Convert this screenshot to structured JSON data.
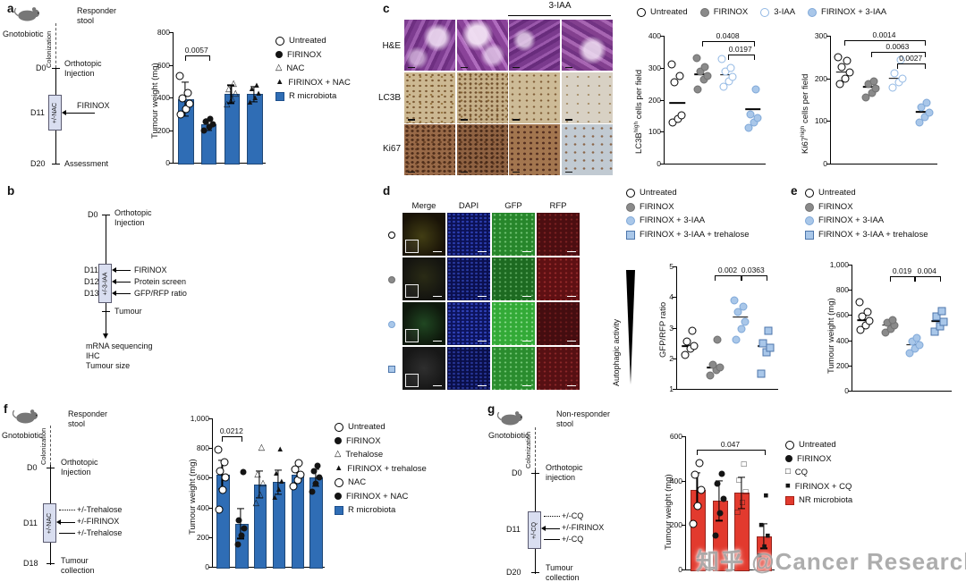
{
  "watermark": "知乎 @Cancer Research",
  "panel_a": {
    "label": "a",
    "schematic": {
      "gnotobiotic": "Gnotobiotic",
      "stool": "Responder stool",
      "colonization": "Colonization",
      "d0": "D0",
      "d0_label": "Orthotopic Injection",
      "d11": "D11",
      "box": "+/-NAC",
      "arrow_label": "FIRINOX",
      "d20": "D20",
      "d20_label": "Assessment"
    },
    "ylabel": "Tumour weight (mg)",
    "chart": {
      "type": "bar",
      "bar_color": "#2f6db5",
      "ylim": [
        0,
        800
      ],
      "yticks": [
        {
          "v": 0,
          "label": "0"
        },
        {
          "v": 200,
          "label": "200"
        },
        {
          "v": 400,
          "label": "400"
        },
        {
          "v": 600,
          "label": "600"
        },
        {
          "v": 800,
          "label": "800"
        }
      ],
      "groups": [
        {
          "name": "Untreated",
          "marker": "open-circle",
          "value": 390,
          "err": 105,
          "points": [
            295,
            330,
            360,
            395,
            425,
            530
          ]
        },
        {
          "name": "FIRINOX",
          "marker": "filled-circle",
          "value": 235,
          "err": 35,
          "points": [
            200,
            218,
            235,
            252,
            268
          ]
        },
        {
          "name": "NAC",
          "marker": "open-triangle",
          "value": 420,
          "err": 55,
          "points": [
            355,
            390,
            420,
            450,
            480
          ]
        },
        {
          "name": "FIRINOX + NAC",
          "marker": "filled-triangle",
          "value": 420,
          "err": 45,
          "points": [
            365,
            395,
            420,
            448,
            470
          ]
        }
      ],
      "sig": [
        {
          "text": "0.0057",
          "i": 0,
          "j": 1,
          "y": 660
        }
      ]
    },
    "legend": [
      {
        "marker": "open-circle",
        "label": "Untreated"
      },
      {
        "marker": "filled-circle",
        "label": "FIRINOX"
      },
      {
        "marker": "open-triangle",
        "label": "NAC"
      },
      {
        "marker": "filled-triangle",
        "label": "FIRINOX + NAC"
      },
      {
        "marker": "blue-square",
        "label": "R microbiota"
      }
    ]
  },
  "panel_b": {
    "label": "b",
    "d0": "D0",
    "d0_label": "Orthotopic Injection",
    "box": "+/-3-IAA",
    "d11": "D11",
    "d11_label": "FIRINOX",
    "d12": "D12",
    "d12_label": "Protein screen",
    "d13": "D13",
    "d13_label": "GFP/RFP ratio",
    "tumour": "Tumour",
    "outputs": [
      "mRNA sequencing",
      "IHC",
      "Tumour size"
    ]
  },
  "panel_c": {
    "label": "c",
    "treatment_label": "3-IAA",
    "rows": [
      "H&E",
      "LC3B",
      "Ki67"
    ],
    "legend": [
      {
        "marker": "open-circle",
        "label": "Untreated"
      },
      {
        "marker": "gray-circle",
        "label": "FIRINOX"
      },
      {
        "marker": "lblue-open-circle",
        "label": "3-IAA"
      },
      {
        "marker": "lblue-circle",
        "label": "FIRINOX + 3-IAA"
      }
    ],
    "lc3b_plot": {
      "ylabel_base": "LC3B",
      "ylabel_sup": "high",
      "ylabel_rest": " cells per field",
      "type": "dots",
      "ylim": [
        0,
        400
      ],
      "yticks": [
        {
          "v": 0,
          "label": "0"
        },
        {
          "v": 100,
          "label": "100"
        },
        {
          "v": 200,
          "label": "200"
        },
        {
          "v": 300,
          "label": "300"
        },
        {
          "v": 400,
          "label": "400"
        }
      ],
      "groups": [
        {
          "name": "Untreated",
          "marker": "open-circle",
          "median": 190,
          "points": [
            128,
            140,
            152,
            255,
            275,
            310
          ]
        },
        {
          "name": "FIRINOX",
          "marker": "gray-circle",
          "median": 280,
          "points": [
            232,
            262,
            275,
            288,
            302,
            330
          ]
        },
        {
          "name": "3-IAA",
          "marker": "lblue-open-circle",
          "median": 278,
          "points": [
            240,
            258,
            272,
            288,
            300,
            328
          ]
        },
        {
          "name": "FIRINOX + 3-IAA",
          "marker": "lblue-circle",
          "median": 170,
          "points": [
            112,
            128,
            142,
            155,
            232
          ]
        }
      ],
      "sig": [
        {
          "text": "0.0408",
          "i": 1,
          "j": 3,
          "y": 382
        },
        {
          "text": "0.0197",
          "i": 2,
          "j": 3,
          "y": 342
        }
      ]
    },
    "ki67_plot": {
      "ylabel_base": "Ki67",
      "ylabel_sup": "high",
      "ylabel_rest": " cells per field",
      "type": "dots",
      "ylim": [
        0,
        300
      ],
      "yticks": [
        {
          "v": 0,
          "label": "0"
        },
        {
          "v": 100,
          "label": "100"
        },
        {
          "v": 200,
          "label": "200"
        },
        {
          "v": 300,
          "label": "300"
        }
      ],
      "groups": [
        {
          "name": "Untreated",
          "marker": "open-circle",
          "median": 215,
          "points": [
            186,
            200,
            214,
            226,
            242,
            250
          ]
        },
        {
          "name": "FIRINOX",
          "marker": "gray-circle",
          "median": 180,
          "points": [
            156,
            166,
            176,
            186,
            192
          ]
        },
        {
          "name": "3-IAA",
          "marker": "lblue-open-circle",
          "median": 200,
          "points": [
            178,
            190,
            200,
            212,
            244
          ]
        },
        {
          "name": "FIRINOX + 3-IAA",
          "marker": "lblue-circle",
          "median": 122,
          "points": [
            96,
            110,
            120,
            132,
            142
          ]
        }
      ],
      "sig": [
        {
          "text": "0.0014",
          "i": 0,
          "j": 3,
          "y": 290
        },
        {
          "text": "0.0063",
          "i": 1,
          "j": 3,
          "y": 262
        },
        {
          "text": "0.0027",
          "i": 2,
          "j": 3,
          "y": 234
        }
      ]
    }
  },
  "panel_d": {
    "label": "d",
    "col_headers": [
      "Merge",
      "DAPI",
      "GFP",
      "RFP"
    ],
    "row_markers": [
      "open-circle",
      "gray-circle",
      "lblue-circle",
      "lblue-square"
    ],
    "legend": [
      {
        "marker": "open-circle",
        "label": "Untreated"
      },
      {
        "marker": "gray-circle",
        "label": "FIRINOX"
      },
      {
        "marker": "lblue-circle",
        "label": "FIRINOX + 3-IAA"
      },
      {
        "marker": "lblue-square",
        "label": "FIRINOX + 3-IAA + trehalose"
      }
    ],
    "activity_label": "Autophagic activity",
    "ylabel": "GFP/RFP ratio",
    "plot": {
      "type": "dots",
      "ylim": [
        1,
        5
      ],
      "yticks": [
        {
          "v": 1,
          "label": "1"
        },
        {
          "v": 2,
          "label": "2"
        },
        {
          "v": 3,
          "label": "3"
        },
        {
          "v": 4,
          "label": "4"
        },
        {
          "v": 5,
          "label": "5"
        }
      ],
      "groups": [
        {
          "name": "Untreated",
          "marker": "open-circle",
          "median": 2.4,
          "points": [
            2.1,
            2.3,
            2.4,
            2.55,
            2.9
          ]
        },
        {
          "name": "FIRINOX",
          "marker": "gray-circle",
          "median": 1.7,
          "points": [
            1.45,
            1.6,
            1.7,
            1.8,
            2.6
          ]
        },
        {
          "name": "FIRINOX + 3-IAA",
          "marker": "lblue-circle",
          "median": 3.35,
          "points": [
            2.6,
            2.95,
            3.2,
            3.5,
            3.7,
            3.9
          ]
        },
        {
          "name": "FIRINOX + 3-IAA + trehalose",
          "marker": "lblue-square",
          "median": 2.4,
          "points": [
            1.5,
            2.2,
            2.35,
            2.5,
            2.9
          ]
        }
      ],
      "sig": [
        {
          "text": "0.002",
          "i": 1,
          "j": 2,
          "y": 4.72
        },
        {
          "text": "0.0363",
          "i": 2,
          "j": 3,
          "y": 4.72
        }
      ]
    }
  },
  "panel_e": {
    "label": "e",
    "legend": [
      {
        "marker": "open-circle",
        "label": "Untreated"
      },
      {
        "marker": "gray-circle",
        "label": "FIRINOX"
      },
      {
        "marker": "lblue-circle",
        "label": "FIRINOX + 3-IAA"
      },
      {
        "marker": "lblue-square",
        "label": "FIRINOX + 3-IAA + trehalose"
      }
    ],
    "ylabel": "Tumour weight (mg)",
    "plot": {
      "type": "dots",
      "ylim": [
        0,
        1000
      ],
      "yticks": [
        {
          "v": 0,
          "label": "0"
        },
        {
          "v": 200,
          "label": "200"
        },
        {
          "v": 400,
          "label": "400"
        },
        {
          "v": 600,
          "label": "600"
        },
        {
          "v": 800,
          "label": "800"
        },
        {
          "v": 1000,
          "label": "1,000"
        }
      ],
      "groups": [
        {
          "name": "Untreated",
          "marker": "open-circle",
          "median": 560,
          "points": [
            480,
            520,
            555,
            590,
            625,
            700
          ]
        },
        {
          "name": "FIRINOX",
          "marker": "gray-circle",
          "median": 520,
          "points": [
            462,
            492,
            515,
            538,
            560
          ]
        },
        {
          "name": "FIRINOX + 3-IAA",
          "marker": "lblue-circle",
          "median": 365,
          "points": [
            295,
            330,
            362,
            392,
            420
          ]
        },
        {
          "name": "FIRINOX + 3-IAA + trehalose",
          "marker": "lblue-square",
          "median": 550,
          "points": [
            470,
            512,
            548,
            588,
            628
          ]
        }
      ],
      "sig": [
        {
          "text": "0.019",
          "i": 1,
          "j": 2,
          "y": 905
        },
        {
          "text": "0.004",
          "i": 2,
          "j": 3,
          "y": 905
        }
      ]
    }
  },
  "panel_f": {
    "label": "f",
    "schematic": {
      "gnotobiotic": "Gnotobiotic",
      "stool": "Responder stool",
      "colonization": "Colonization",
      "d0": "D0",
      "d0_label": "Orthotopic Injection",
      "d11": "D11",
      "box": "+/-NAC",
      "arrows": [
        "+/-Trehalose",
        "+/-FIRINOX",
        "+/-Trehalose"
      ],
      "d18": "D18",
      "d18_label": "Tumour collection"
    },
    "ylabel": "Tumour weight (mg)",
    "chart": {
      "type": "bar",
      "bar_color": "#2f6db5",
      "ylim": [
        0,
        1000
      ],
      "yticks": [
        {
          "v": 0,
          "label": "0"
        },
        {
          "v": 200,
          "label": "200"
        },
        {
          "v": 400,
          "label": "400"
        },
        {
          "v": 600,
          "label": "600"
        },
        {
          "v": 800,
          "label": "800"
        },
        {
          "v": 1000,
          "label": "1,000"
        }
      ],
      "groups": [
        {
          "name": "Untreated",
          "marker": "open-circle",
          "value": 620,
          "err": 95,
          "points": [
            385,
            520,
            600,
            645,
            705,
            790
          ]
        },
        {
          "name": "FIRINOX",
          "marker": "filled-circle",
          "value": 290,
          "err": 100,
          "points": [
            150,
            210,
            262,
            315,
            640
          ]
        },
        {
          "name": "Trehalose",
          "marker": "open-triangle",
          "value": 555,
          "err": 90,
          "points": [
            425,
            480,
            560,
            620,
            800
          ]
        },
        {
          "name": "FIRINOX + trehalose",
          "marker": "filled-triangle",
          "value": 570,
          "err": 80,
          "points": [
            465,
            520,
            572,
            625,
            790
          ]
        },
        {
          "name": "NAC",
          "marker": "open-circle",
          "value": 620,
          "err": 55,
          "points": [
            545,
            582,
            620,
            658,
            700
          ]
        },
        {
          "name": "FIRINOX + NAC",
          "marker": "filled-circle",
          "value": 600,
          "err": 55,
          "points": [
            505,
            558,
            600,
            642,
            680
          ]
        }
      ],
      "sig": [
        {
          "text": "0.0212",
          "i": 0,
          "j": 1,
          "y": 880
        }
      ]
    },
    "legend": [
      {
        "marker": "open-circle",
        "label": "Untreated"
      },
      {
        "marker": "filled-circle",
        "label": "FIRINOX"
      },
      {
        "marker": "open-triangle",
        "label": "Trehalose"
      },
      {
        "marker": "filled-triangle",
        "label": "FIRINOX + trehalose"
      },
      {
        "marker": "open-circle",
        "label": "NAC"
      },
      {
        "marker": "filled-circle",
        "label": "FIRINOX + NAC"
      },
      {
        "marker": "blue-square",
        "label": "R microbiota"
      }
    ]
  },
  "panel_g": {
    "label": "g",
    "schematic": {
      "gnotobiotic": "Gnotobiotic",
      "stool": "Non-responder stool",
      "colonization": "Colonization",
      "d0": "D0",
      "d0_label": "Orthotopic injection",
      "d11": "D11",
      "box": "+/-CQ",
      "arrows": [
        "+/-CQ",
        "+/-FIRINOX",
        "+/-CQ"
      ],
      "d20": "D20",
      "d20_label": "Tumour collection"
    },
    "ylabel": "Tumour weight (mg)",
    "chart": {
      "type": "bar",
      "bar_color": "#e23a2e",
      "ylim": [
        0,
        600
      ],
      "yticks": [
        {
          "v": 0,
          "label": "0"
        },
        {
          "v": 200,
          "label": "200"
        },
        {
          "v": 400,
          "label": "400"
        },
        {
          "v": 600,
          "label": "600"
        }
      ],
      "groups": [
        {
          "name": "Untreated",
          "marker": "open-circle",
          "value": 360,
          "err": 75,
          "points": [
            205,
            285,
            360,
            425,
            480
          ]
        },
        {
          "name": "FIRINOX",
          "marker": "filled-circle",
          "value": 310,
          "err": 90,
          "points": [
            155,
            252,
            320,
            385,
            430
          ]
        },
        {
          "name": "CQ",
          "marker": "open-square",
          "value": 345,
          "err": 70,
          "points": [
            255,
            300,
            348,
            400,
            470
          ]
        },
        {
          "name": "FIRINOX + CQ",
          "marker": "filled-square",
          "value": 150,
          "err": 55,
          "points": [
            62,
            100,
            148,
            198,
            330
          ]
        }
      ],
      "sig": [
        {
          "text": "0.047",
          "i": 0,
          "j": 3,
          "y": 540
        }
      ]
    },
    "legend": [
      {
        "marker": "open-circle",
        "label": "Untreated"
      },
      {
        "marker": "filled-circle",
        "label": "FIRINOX"
      },
      {
        "marker": "open-square",
        "label": "CQ"
      },
      {
        "marker": "filled-square",
        "label": "FIRINOX + CQ"
      },
      {
        "marker": "red-square",
        "label": "NR microbiota"
      }
    ]
  }
}
